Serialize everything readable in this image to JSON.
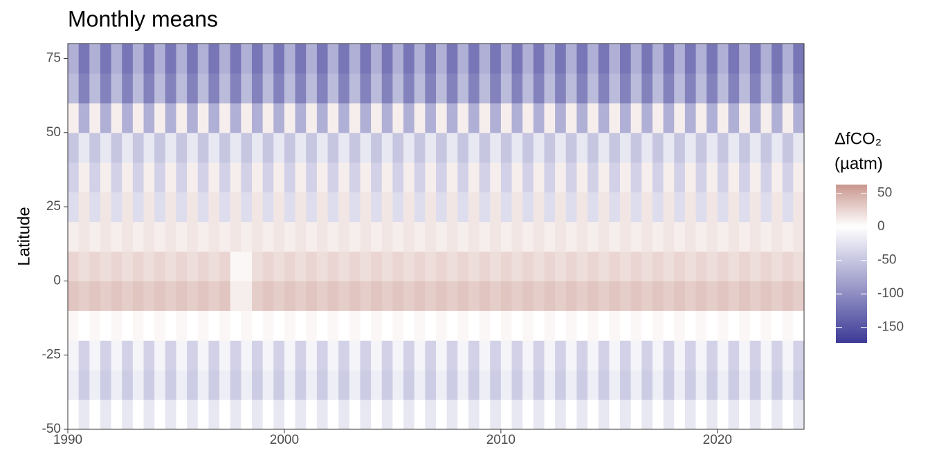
{
  "chart_data": {
    "type": "heatmap",
    "title": "Monthly means",
    "y_label": "Latitude",
    "legend_title": [
      "ΔfCO₂",
      "(µatm)"
    ],
    "x": [
      1990,
      1990.5,
      1991,
      1991.5,
      1992,
      1992.5,
      1993,
      1993.5,
      1994,
      1994.5,
      1995,
      1995.5,
      1996,
      1996.5,
      1997,
      1997.5,
      1998,
      1998.5,
      1999,
      1999.5,
      2000,
      2000.5,
      2001,
      2001.5,
      2002,
      2002.5,
      2003,
      2003.5,
      2004,
      2004.5,
      2005,
      2005.5,
      2006,
      2006.5,
      2007,
      2007.5,
      2008,
      2008.5,
      2009,
      2009.5,
      2010,
      2010.5,
      2011,
      2011.5,
      2012,
      2012.5,
      2013,
      2013.5,
      2014,
      2014.5,
      2015,
      2015.5,
      2016,
      2016.5,
      2017,
      2017.5,
      2018,
      2018.5,
      2019,
      2019.5,
      2020,
      2020.5,
      2021,
      2021.5,
      2022,
      2022.5,
      2023,
      2023.5
    ],
    "y": [
      -45,
      -35,
      -25,
      -15,
      -5,
      5,
      15,
      25,
      35,
      45,
      55,
      65,
      75
    ],
    "z": [
      [
        0,
        -20,
        0,
        -20,
        0,
        -20,
        0,
        -20,
        0,
        -20,
        0,
        -20,
        0,
        -20,
        0,
        -20,
        0,
        -20,
        0,
        -20,
        0,
        -20,
        0,
        -20,
        0,
        -20,
        0,
        -20,
        0,
        -20,
        0,
        -20,
        0,
        -20,
        0,
        -20,
        0,
        -20,
        0,
        -20,
        0,
        -20,
        0,
        -20,
        0,
        -20,
        0,
        -20,
        0,
        -20,
        0,
        -20,
        0,
        -20,
        0,
        -20,
        0,
        -20,
        0,
        -20,
        0,
        -20,
        0,
        -20,
        0,
        -20,
        0,
        -20
      ],
      [
        -15,
        -45,
        -15,
        -45,
        -15,
        -45,
        -15,
        -45,
        -15,
        -45,
        -15,
        -45,
        -15,
        -45,
        -15,
        -45,
        -15,
        -45,
        -15,
        -45,
        -15,
        -45,
        -15,
        -45,
        -15,
        -45,
        -15,
        -45,
        -15,
        -45,
        -15,
        -45,
        -15,
        -45,
        -15,
        -45,
        -15,
        -45,
        -15,
        -45,
        -15,
        -45,
        -15,
        -45,
        -15,
        -45,
        -15,
        -45,
        -15,
        -45,
        -15,
        -45,
        -15,
        -45,
        -15,
        -45,
        -15,
        -45,
        -15,
        -45,
        -15,
        -45,
        -15,
        -45,
        -15,
        -45,
        -15,
        -45
      ],
      [
        -10,
        -40,
        -10,
        -40,
        -10,
        -40,
        -10,
        -40,
        -10,
        -40,
        -10,
        -40,
        -10,
        -40,
        -10,
        -40,
        -10,
        -40,
        -10,
        -40,
        -10,
        -40,
        -10,
        -40,
        -10,
        -40,
        -10,
        -40,
        -10,
        -40,
        -10,
        -40,
        -10,
        -40,
        -10,
        -40,
        -10,
        -40,
        -10,
        -40,
        -10,
        -40,
        -10,
        -40,
        -10,
        -40,
        -10,
        -40,
        -10,
        -40,
        -10,
        -40,
        -10,
        -40,
        -10,
        -40,
        -10,
        -40,
        -10,
        -40,
        -10,
        -40,
        -10,
        -40,
        -10,
        -40,
        -10,
        -40
      ],
      [
        5,
        0,
        5,
        0,
        5,
        0,
        5,
        0,
        5,
        0,
        5,
        0,
        5,
        0,
        5,
        0,
        5,
        0,
        5,
        0,
        5,
        0,
        5,
        0,
        5,
        0,
        5,
        0,
        5,
        0,
        5,
        0,
        5,
        0,
        5,
        0,
        5,
        0,
        5,
        0,
        5,
        0,
        5,
        0,
        5,
        0,
        5,
        0,
        5,
        0,
        5,
        0,
        5,
        0,
        5,
        0,
        5,
        0,
        5,
        0,
        5,
        0,
        5,
        0,
        5,
        0,
        5,
        0
      ],
      [
        35,
        30,
        35,
        30,
        35,
        30,
        35,
        30,
        35,
        30,
        35,
        30,
        35,
        30,
        35,
        10,
        10,
        30,
        35,
        30,
        35,
        30,
        35,
        30,
        35,
        30,
        35,
        30,
        35,
        30,
        35,
        30,
        35,
        30,
        35,
        30,
        35,
        30,
        35,
        30,
        35,
        30,
        35,
        30,
        35,
        30,
        35,
        30,
        35,
        30,
        35,
        30,
        35,
        30,
        35,
        30,
        35,
        30,
        35,
        30,
        35,
        30,
        35,
        30,
        35,
        30,
        35,
        30
      ],
      [
        25,
        20,
        25,
        20,
        25,
        20,
        25,
        20,
        25,
        20,
        25,
        20,
        25,
        20,
        25,
        5,
        5,
        20,
        25,
        20,
        25,
        20,
        25,
        20,
        25,
        20,
        25,
        20,
        25,
        20,
        25,
        20,
        25,
        20,
        25,
        20,
        25,
        20,
        25,
        20,
        25,
        20,
        25,
        20,
        25,
        20,
        25,
        20,
        25,
        20,
        25,
        20,
        25,
        20,
        25,
        20,
        25,
        20,
        25,
        20,
        25,
        20,
        25,
        20,
        25,
        20,
        25,
        20
      ],
      [
        10,
        15,
        10,
        15,
        10,
        15,
        10,
        15,
        10,
        15,
        10,
        15,
        10,
        15,
        10,
        15,
        10,
        15,
        10,
        15,
        10,
        15,
        10,
        15,
        10,
        15,
        10,
        15,
        10,
        15,
        10,
        15,
        10,
        15,
        10,
        15,
        10,
        15,
        10,
        15,
        10,
        15,
        10,
        15,
        10,
        15,
        10,
        15,
        10,
        15,
        10,
        15,
        10,
        15,
        10,
        15,
        10,
        15,
        10,
        15,
        10,
        15,
        10,
        15,
        10,
        15,
        10,
        15
      ],
      [
        -30,
        15,
        -30,
        15,
        -30,
        15,
        -30,
        15,
        -30,
        15,
        -30,
        15,
        -30,
        15,
        -30,
        15,
        -30,
        15,
        -30,
        15,
        -30,
        15,
        -30,
        15,
        -30,
        15,
        -30,
        15,
        -30,
        15,
        -30,
        15,
        -30,
        15,
        -30,
        15,
        -30,
        15,
        -30,
        15,
        -30,
        15,
        -30,
        15,
        -30,
        15,
        -30,
        15,
        -30,
        15,
        -30,
        15,
        -30,
        15,
        -30,
        15,
        -30,
        15,
        -30,
        15,
        -30,
        15,
        -30,
        15,
        -30,
        15,
        -30,
        15
      ],
      [
        -40,
        10,
        -40,
        10,
        -40,
        10,
        -40,
        10,
        -40,
        10,
        -40,
        10,
        -40,
        10,
        -40,
        10,
        -40,
        10,
        -40,
        10,
        -40,
        10,
        -40,
        10,
        -40,
        10,
        -40,
        10,
        -40,
        10,
        -40,
        10,
        -40,
        10,
        -40,
        10,
        -40,
        10,
        -40,
        10,
        -40,
        10,
        -40,
        10,
        -40,
        10,
        -40,
        10,
        -40,
        10,
        -40,
        10,
        -40,
        10,
        -40,
        10,
        -40,
        10,
        -40,
        10,
        -40,
        10,
        -40,
        10,
        -40,
        10,
        -40,
        10
      ],
      [
        -50,
        -20,
        -50,
        -20,
        -50,
        -20,
        -50,
        -20,
        -50,
        -20,
        -50,
        -20,
        -50,
        -20,
        -50,
        -20,
        -50,
        -20,
        -50,
        -20,
        -50,
        -20,
        -50,
        -20,
        -50,
        -20,
        -50,
        -20,
        -50,
        -20,
        -50,
        -20,
        -50,
        -20,
        -50,
        -20,
        -50,
        -20,
        -50,
        -20,
        -50,
        -20,
        -50,
        -20,
        -50,
        -20,
        -50,
        -20,
        -50,
        -20,
        -50,
        -20,
        -50,
        -20,
        -50,
        -20,
        -50,
        -20,
        -50,
        -20,
        -50,
        -20,
        -50,
        -20,
        -50,
        -20,
        -50,
        -20
      ],
      [
        10,
        -70,
        10,
        -70,
        10,
        -70,
        10,
        -70,
        10,
        -70,
        10,
        -70,
        10,
        -70,
        10,
        -70,
        10,
        -70,
        10,
        -70,
        10,
        -70,
        10,
        -70,
        10,
        -70,
        10,
        -70,
        10,
        -70,
        10,
        -70,
        10,
        -70,
        10,
        -70,
        10,
        -70,
        10,
        -70,
        10,
        -70,
        10,
        -70,
        10,
        -70,
        10,
        -70,
        10,
        -70,
        10,
        -70,
        10,
        -70,
        10,
        -70,
        10,
        -70,
        10,
        -70,
        10,
        -70,
        10,
        -70,
        10,
        -70,
        10,
        -70
      ],
      [
        -60,
        -110,
        -60,
        -110,
        -60,
        -110,
        -60,
        -110,
        -60,
        -110,
        -60,
        -110,
        -60,
        -110,
        -60,
        -110,
        -60,
        -110,
        -60,
        -110,
        -60,
        -110,
        -60,
        -110,
        -60,
        -110,
        -60,
        -110,
        -60,
        -110,
        -60,
        -110,
        -60,
        -110,
        -60,
        -110,
        -60,
        -110,
        -60,
        -110,
        -60,
        -110,
        -60,
        -110,
        -60,
        -110,
        -60,
        -110,
        -60,
        -110,
        -60,
        -110,
        -60,
        -110,
        -60,
        -110,
        -60,
        -110,
        -60,
        -110,
        -60,
        -110,
        -60,
        -110,
        -60,
        -110,
        -60,
        -110
      ],
      [
        -70,
        -120,
        -70,
        -120,
        -70,
        -120,
        -70,
        -120,
        -70,
        -120,
        -70,
        -120,
        -70,
        -120,
        -70,
        -120,
        -70,
        -120,
        -70,
        -120,
        -70,
        -120,
        -70,
        -120,
        -70,
        -120,
        -70,
        -120,
        -70,
        -120,
        -70,
        -120,
        -70,
        -120,
        -70,
        -120,
        -70,
        -120,
        -70,
        -120,
        -70,
        -120,
        -70,
        -120,
        -70,
        -120,
        -70,
        -120,
        -70,
        -120,
        -70,
        -120,
        -70,
        -120,
        -70,
        -120,
        -70,
        -120,
        -70,
        -120,
        -70,
        -120,
        -70,
        -120,
        -70,
        -120,
        -70,
        -120
      ]
    ],
    "xlim": [
      1990,
      2024
    ],
    "ylim": [
      -50,
      80
    ],
    "xticks": [
      1990,
      2000,
      2010,
      2020
    ],
    "yticks": [
      -50,
      -25,
      0,
      25,
      50,
      75
    ],
    "zlim": [
      -173,
      63
    ],
    "zticks": [
      50,
      0,
      -50,
      -100,
      -150
    ],
    "colors": {
      "low": "#3c3a96",
      "mid": "#ffffff",
      "high": "#c9968e"
    }
  }
}
